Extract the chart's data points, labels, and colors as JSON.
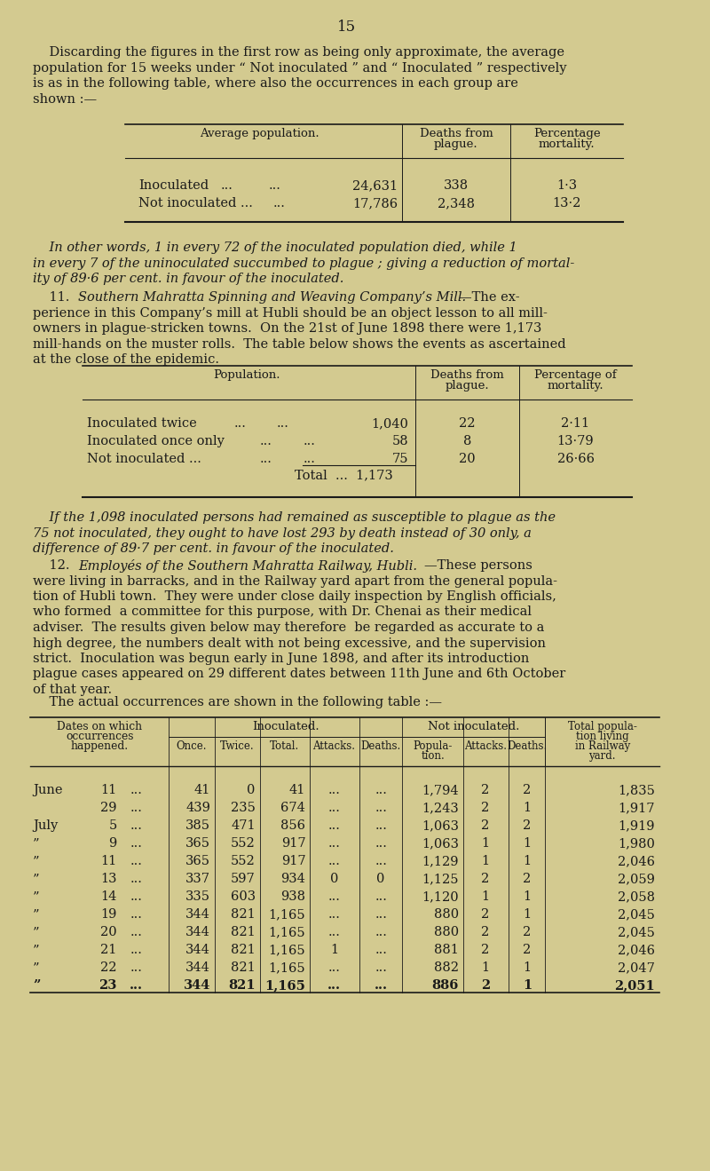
{
  "bg_color": "#d3ca90",
  "text_color": "#1a1a1a",
  "page_number": "15",
  "para1_lines": [
    "    Discarding the figures in the first row as being only approximate, the average",
    "population for 15 weeks under “ Not inoculated ” and “ Inoculated ” respectively",
    "is as in the following table, where also the occurrences in each group are",
    "shown :—"
  ],
  "italic_para1_lines": [
    "    In other words, 1 in every 72 of the inoculated population died, while 1",
    "in every 7 of the uninoculated succumbed to plague ; giving a reduction of mortal-",
    "ity of 89·6 per cent. in favour of the inoculated."
  ],
  "para2_lines": [
    [
      "normal",
      "    11.   "
    ],
    [
      "italic",
      "Southern Mahratta Spinning and Weaving Company’s Mill."
    ],
    [
      "normal",
      "—The ex-"
    ]
  ],
  "para2_cont_lines": [
    "perience in this Company’s mill at Hubli should be an object lesson to all mill-",
    "owners in plague-stricken towns.  On the 21st of June 1898 there were 1,173",
    "mill-hands on the muster rolls.  The table below shows the events as ascertained",
    "at the close of the epidemic."
  ],
  "italic_para2_lines": [
    "    If the 1,098 inoculated persons had remained as susceptible to plague as the",
    "75 not inoculated, they ought to have lost 293 by death instead of 30 only, a",
    "difference of 89·7 per cent. in favour of the inoculated."
  ],
  "para3_lines": [
    [
      "normal",
      "    12.   "
    ],
    [
      "italic",
      "Employés of the Southern Mahratta Railway, Hubli."
    ],
    [
      "normal",
      "—These persons"
    ]
  ],
  "para3_cont_lines": [
    "were living in barracks, and in the Railway yard apart from the general popula-",
    "tion of Hubli town.  They were under close daily inspection by English officials,",
    "who formed  a committee for this purpose, with Dr. Chenai as their medical",
    "adviser.  The results given below may therefore  be regarded as accurate to a",
    "high degree, the numbers dealt with not being excessive, and the supervision",
    "strict.  Inoculation was begun early in June 1898, and after its introduction",
    "plague cases appeared on 29 different dates between 11th June and 6th October",
    "of that year."
  ],
  "para4": "    The actual occurrences are shown in the following table :—",
  "table3_rows": [
    [
      "June",
      "11",
      "...",
      "41",
      "0",
      "41",
      "...",
      "...",
      "1,794",
      "2",
      "2",
      "1,835"
    ],
    [
      "",
      "29",
      "...",
      "439",
      "235",
      "674",
      "...",
      "...",
      "1,243",
      "2",
      "1",
      "1,917"
    ],
    [
      "July",
      "5",
      "...",
      "385",
      "471",
      "856",
      "...",
      "...",
      "1,063",
      "2",
      "2",
      "1,919"
    ],
    [
      "”",
      "9",
      "...",
      "365",
      "552",
      "917",
      "...",
      "...",
      "1,063",
      "1",
      "1",
      "1,980"
    ],
    [
      "”",
      "11",
      "...",
      "365",
      "552",
      "917",
      "...",
      "...",
      "1,129",
      "1",
      "1",
      "2,046"
    ],
    [
      "”",
      "13",
      "...",
      "337",
      "597",
      "934",
      "0",
      "0",
      "1,125",
      "2",
      "2",
      "2,059"
    ],
    [
      "”",
      "14",
      "...",
      "335",
      "603",
      "938",
      "...",
      "...",
      "1,120",
      "1",
      "1",
      "2,058"
    ],
    [
      "”",
      "19",
      "...",
      "344",
      "821",
      "1,165",
      "...",
      "...",
      "880",
      "2",
      "1",
      "2,045"
    ],
    [
      "”",
      "20",
      "...",
      "344",
      "821",
      "1,165",
      "...",
      "...",
      "880",
      "2",
      "2",
      "2,045"
    ],
    [
      "”",
      "21",
      "...",
      "344",
      "821",
      "1,165",
      "1",
      "...",
      "881",
      "2",
      "2",
      "2,046"
    ],
    [
      "”",
      "22",
      "...",
      "344",
      "821",
      "1,165",
      "...",
      "...",
      "882",
      "1",
      "1",
      "2,047"
    ],
    [
      "”",
      "23",
      "...",
      "344",
      "821",
      "1,165",
      "...",
      "...",
      "886",
      "2",
      "1",
      "2,051"
    ]
  ]
}
